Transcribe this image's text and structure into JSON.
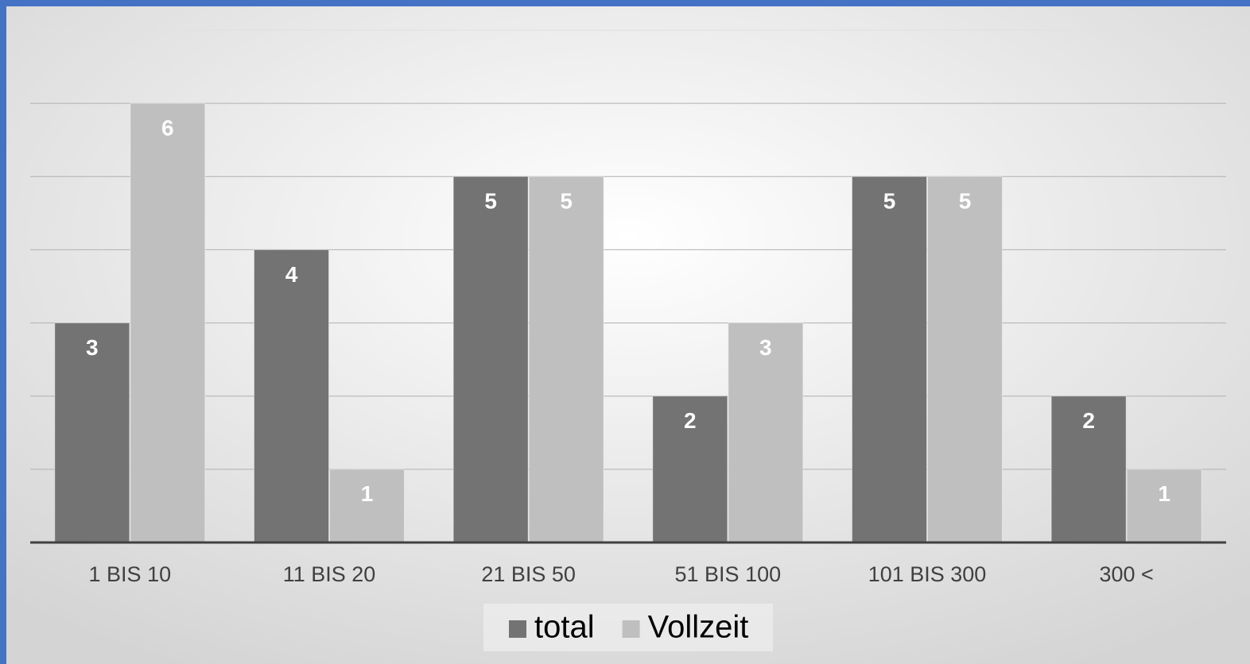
{
  "chart_data": {
    "type": "bar",
    "categories": [
      "1 BIS 10",
      "11 BIS 20",
      "21 BIS 50",
      "51 BIS 100",
      "101 BIS 300",
      "300 <"
    ],
    "series": [
      {
        "name": "total",
        "color": "#737373",
        "values": [
          3,
          4,
          5,
          2,
          5,
          2
        ]
      },
      {
        "name": "Vollzeit",
        "color": "#bfbfbf",
        "values": [
          6,
          1,
          5,
          3,
          5,
          1
        ]
      }
    ],
    "ylim": [
      0,
      7
    ],
    "yticks": [
      0,
      1,
      2,
      3,
      4,
      5,
      6,
      7
    ],
    "grid": true,
    "legend": "bottom"
  }
}
